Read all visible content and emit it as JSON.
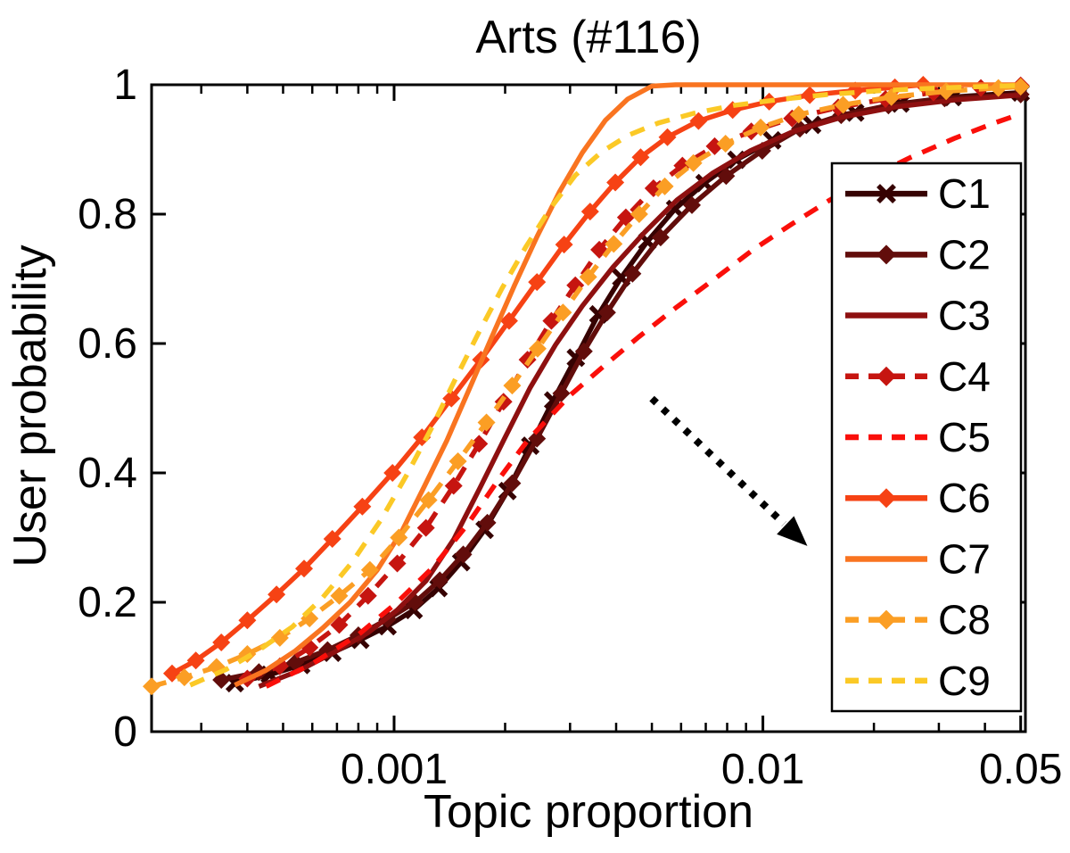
{
  "chart_data": {
    "type": "line",
    "title": "Arts (#116)",
    "xlabel": "Topic proportion",
    "ylabel": "User probability",
    "xscale": "log",
    "xlim": [
      0.00022,
      0.0515
    ],
    "ylim": [
      0,
      1
    ],
    "grid": false,
    "legend_position": "inside-right",
    "x_ticks": [
      {
        "v": 0.001,
        "label": "0.001"
      },
      {
        "v": 0.01,
        "label": "0.01"
      },
      {
        "v": 0.05,
        "label": "0.05"
      }
    ],
    "x_minor_ticks": [
      0.0003,
      0.0004,
      0.0005,
      0.0006,
      0.0007,
      0.0008,
      0.0009,
      0.002,
      0.003,
      0.004,
      0.005,
      0.006,
      0.007,
      0.008,
      0.009,
      0.02,
      0.03,
      0.04
    ],
    "y_ticks": [
      {
        "v": 0,
        "label": "0"
      },
      {
        "v": 0.2,
        "label": "0.2"
      },
      {
        "v": 0.4,
        "label": "0.4"
      },
      {
        "v": 0.6,
        "label": "0.6"
      },
      {
        "v": 0.8,
        "label": "0.8"
      },
      {
        "v": 1,
        "label": "1"
      }
    ],
    "annotation_arrow": {
      "style": "dotted",
      "color": "#000000",
      "from": [
        0.005,
        0.515
      ],
      "to": [
        0.0132,
        0.287
      ]
    },
    "series": [
      {
        "name": "C1",
        "color": "#360202",
        "line_style": "solid",
        "marker": "x",
        "points": [
          [
            0.00037,
            0.075
          ],
          [
            0.00046,
            0.088
          ],
          [
            0.00056,
            0.103
          ],
          [
            0.00068,
            0.122
          ],
          [
            0.00081,
            0.142
          ],
          [
            0.00096,
            0.163
          ],
          [
            0.00113,
            0.188
          ],
          [
            0.00132,
            0.222
          ],
          [
            0.00152,
            0.262
          ],
          [
            0.00176,
            0.312
          ],
          [
            0.00203,
            0.372
          ],
          [
            0.00234,
            0.442
          ],
          [
            0.0027,
            0.512
          ],
          [
            0.00311,
            0.578
          ],
          [
            0.00358,
            0.645
          ],
          [
            0.00413,
            0.702
          ],
          [
            0.00486,
            0.758
          ],
          [
            0.00578,
            0.808
          ],
          [
            0.00695,
            0.848
          ],
          [
            0.00848,
            0.884
          ],
          [
            0.0106,
            0.914
          ],
          [
            0.0136,
            0.938
          ],
          [
            0.0178,
            0.957
          ],
          [
            0.0236,
            0.971
          ],
          [
            0.0327,
            0.981
          ],
          [
            0.05,
            0.988
          ]
        ]
      },
      {
        "name": "C2",
        "color": "#620d0b",
        "line_style": "solid",
        "marker": "diamond",
        "points": [
          [
            0.00034,
            0.08
          ],
          [
            0.00043,
            0.092
          ],
          [
            0.00054,
            0.107
          ],
          [
            0.00066,
            0.126
          ],
          [
            0.0008,
            0.149
          ],
          [
            0.00096,
            0.174
          ],
          [
            0.00114,
            0.2
          ],
          [
            0.00133,
            0.234
          ],
          [
            0.00154,
            0.274
          ],
          [
            0.00179,
            0.323
          ],
          [
            0.00209,
            0.384
          ],
          [
            0.00244,
            0.453
          ],
          [
            0.00284,
            0.523
          ],
          [
            0.00327,
            0.588
          ],
          [
            0.00378,
            0.648
          ],
          [
            0.00443,
            0.708
          ],
          [
            0.00528,
            0.764
          ],
          [
            0.00642,
            0.814
          ],
          [
            0.00795,
            0.859
          ],
          [
            0.00996,
            0.898
          ],
          [
            0.0126,
            0.932
          ],
          [
            0.0163,
            0.953
          ],
          [
            0.0219,
            0.968
          ],
          [
            0.0311,
            0.979
          ],
          [
            0.05,
            0.985
          ]
        ]
      },
      {
        "name": "C3",
        "color": "#8e1010",
        "line_style": "solid",
        "marker": "none",
        "points": [
          [
            0.00043,
            0.07
          ],
          [
            0.00055,
            0.094
          ],
          [
            0.00069,
            0.123
          ],
          [
            0.00085,
            0.153
          ],
          [
            0.00102,
            0.188
          ],
          [
            0.00122,
            0.233
          ],
          [
            0.00145,
            0.297
          ],
          [
            0.00171,
            0.377
          ],
          [
            0.002,
            0.455
          ],
          [
            0.00234,
            0.532
          ],
          [
            0.00274,
            0.598
          ],
          [
            0.00324,
            0.658
          ],
          [
            0.00392,
            0.718
          ],
          [
            0.00478,
            0.772
          ],
          [
            0.00585,
            0.822
          ],
          [
            0.00729,
            0.863
          ],
          [
            0.00925,
            0.898
          ],
          [
            0.0121,
            0.928
          ],
          [
            0.0164,
            0.95
          ],
          [
            0.0231,
            0.966
          ],
          [
            0.0337,
            0.977
          ],
          [
            0.05,
            0.984
          ]
        ]
      },
      {
        "name": "C4",
        "color": "#c61510",
        "line_style": "dashed",
        "marker": "diamond",
        "points": [
          [
            0.0004,
            0.082
          ],
          [
            0.00049,
            0.101
          ],
          [
            0.00059,
            0.13
          ],
          [
            0.00071,
            0.165
          ],
          [
            0.00085,
            0.21
          ],
          [
            0.00102,
            0.26
          ],
          [
            0.00122,
            0.315
          ],
          [
            0.00145,
            0.38
          ],
          [
            0.0017,
            0.445
          ],
          [
            0.00198,
            0.51
          ],
          [
            0.0023,
            0.575
          ],
          [
            0.00267,
            0.635
          ],
          [
            0.0031,
            0.69
          ],
          [
            0.0036,
            0.745
          ],
          [
            0.00425,
            0.795
          ],
          [
            0.00505,
            0.84
          ],
          [
            0.00605,
            0.875
          ],
          [
            0.0074,
            0.905
          ],
          [
            0.0093,
            0.928
          ],
          [
            0.012,
            0.948
          ],
          [
            0.016,
            0.965
          ],
          [
            0.0215,
            0.978
          ],
          [
            0.029,
            0.988
          ],
          [
            0.039,
            0.995
          ],
          [
            0.05,
            0.999
          ]
        ]
      },
      {
        "name": "C5",
        "color": "#fa0f0a",
        "line_style": "dashed",
        "marker": "none",
        "points": [
          [
            0.00045,
            0.07
          ],
          [
            0.0006,
            0.105
          ],
          [
            0.0008,
            0.15
          ],
          [
            0.00102,
            0.2
          ],
          [
            0.00128,
            0.255
          ],
          [
            0.00158,
            0.32
          ],
          [
            0.00192,
            0.39
          ],
          [
            0.0023,
            0.45
          ],
          [
            0.003,
            0.52
          ],
          [
            0.0037,
            0.565
          ],
          [
            0.0046,
            0.61
          ],
          [
            0.0058,
            0.655
          ],
          [
            0.0074,
            0.7
          ],
          [
            0.0094,
            0.745
          ],
          [
            0.012,
            0.785
          ],
          [
            0.0152,
            0.822
          ],
          [
            0.0192,
            0.855
          ],
          [
            0.0252,
            0.888
          ],
          [
            0.033,
            0.917
          ],
          [
            0.042,
            0.94
          ],
          [
            0.05,
            0.955
          ]
        ]
      },
      {
        "name": "C6",
        "color": "#f64214",
        "line_style": "solid",
        "marker": "diamond",
        "points": [
          [
            0.00025,
            0.09
          ],
          [
            0.00029,
            0.11
          ],
          [
            0.00034,
            0.138
          ],
          [
            0.0004,
            0.172
          ],
          [
            0.00048,
            0.212
          ],
          [
            0.00057,
            0.252
          ],
          [
            0.00068,
            0.298
          ],
          [
            0.00082,
            0.348
          ],
          [
            0.00099,
            0.4
          ],
          [
            0.00119,
            0.455
          ],
          [
            0.00143,
            0.515
          ],
          [
            0.00172,
            0.575
          ],
          [
            0.00205,
            0.635
          ],
          [
            0.00244,
            0.695
          ],
          [
            0.00289,
            0.753
          ],
          [
            0.0034,
            0.804
          ],
          [
            0.00398,
            0.849
          ],
          [
            0.00466,
            0.888
          ],
          [
            0.00551,
            0.919
          ],
          [
            0.00669,
            0.944
          ],
          [
            0.00828,
            0.961
          ],
          [
            0.0104,
            0.974
          ],
          [
            0.0134,
            0.984
          ],
          [
            0.0178,
            0.991
          ],
          [
            0.0228,
            0.996
          ],
          [
            0.0272,
            1.0
          ]
        ]
      },
      {
        "name": "C7",
        "color": "#f97420",
        "line_style": "solid",
        "marker": "none",
        "points": [
          [
            0.00037,
            0.072
          ],
          [
            0.00045,
            0.095
          ],
          [
            0.00054,
            0.125
          ],
          [
            0.00064,
            0.16
          ],
          [
            0.00076,
            0.2
          ],
          [
            0.0009,
            0.25
          ],
          [
            0.00105,
            0.31
          ],
          [
            0.00121,
            0.38
          ],
          [
            0.00139,
            0.45
          ],
          [
            0.0016,
            0.53
          ],
          [
            0.00184,
            0.61
          ],
          [
            0.00212,
            0.69
          ],
          [
            0.00244,
            0.765
          ],
          [
            0.00281,
            0.835
          ],
          [
            0.00324,
            0.895
          ],
          [
            0.00374,
            0.945
          ],
          [
            0.0043,
            0.978
          ],
          [
            0.005,
            0.998
          ],
          [
            0.0058,
            1.0
          ],
          [
            0.05,
            1.0
          ]
        ]
      },
      {
        "name": "C8",
        "color": "#fb9e24",
        "line_style": "dashed",
        "marker": "diamond",
        "points": [
          [
            0.00022,
            0.07
          ],
          [
            0.00027,
            0.084
          ],
          [
            0.00033,
            0.1
          ],
          [
            0.0004,
            0.12
          ],
          [
            0.00049,
            0.145
          ],
          [
            0.00059,
            0.175
          ],
          [
            0.00071,
            0.21
          ],
          [
            0.00086,
            0.25
          ],
          [
            0.00103,
            0.3
          ],
          [
            0.00124,
            0.358
          ],
          [
            0.00149,
            0.418
          ],
          [
            0.00178,
            0.478
          ],
          [
            0.00209,
            0.535
          ],
          [
            0.00245,
            0.592
          ],
          [
            0.00287,
            0.648
          ],
          [
            0.00336,
            0.703
          ],
          [
            0.00394,
            0.754
          ],
          [
            0.00462,
            0.8
          ],
          [
            0.00542,
            0.843
          ],
          [
            0.00648,
            0.879
          ],
          [
            0.00792,
            0.909
          ],
          [
            0.00986,
            0.934
          ],
          [
            0.0125,
            0.954
          ],
          [
            0.0165,
            0.969
          ],
          [
            0.0223,
            0.981
          ],
          [
            0.0314,
            0.99
          ],
          [
            0.0435,
            0.995
          ],
          [
            0.05,
            0.997
          ]
        ]
      },
      {
        "name": "C9",
        "color": "#fbc926",
        "line_style": "dashed",
        "marker": "none",
        "points": [
          [
            0.00028,
            0.072
          ],
          [
            0.00035,
            0.096
          ],
          [
            0.00043,
            0.126
          ],
          [
            0.00053,
            0.162
          ],
          [
            0.00064,
            0.207
          ],
          [
            0.00077,
            0.262
          ],
          [
            0.00092,
            0.327
          ],
          [
            0.00108,
            0.396
          ],
          [
            0.00126,
            0.468
          ],
          [
            0.00146,
            0.543
          ],
          [
            0.00169,
            0.615
          ],
          [
            0.00196,
            0.685
          ],
          [
            0.00228,
            0.75
          ],
          [
            0.00266,
            0.81
          ],
          [
            0.0031,
            0.86
          ],
          [
            0.00365,
            0.896
          ],
          [
            0.00432,
            0.922
          ],
          [
            0.00521,
            0.941
          ],
          [
            0.00651,
            0.956
          ],
          [
            0.00832,
            0.968
          ],
          [
            0.011,
            0.977
          ],
          [
            0.015,
            0.985
          ],
          [
            0.021,
            0.991
          ],
          [
            0.03,
            0.995
          ],
          [
            0.043,
            0.998
          ],
          [
            0.05,
            0.999
          ]
        ]
      }
    ]
  }
}
